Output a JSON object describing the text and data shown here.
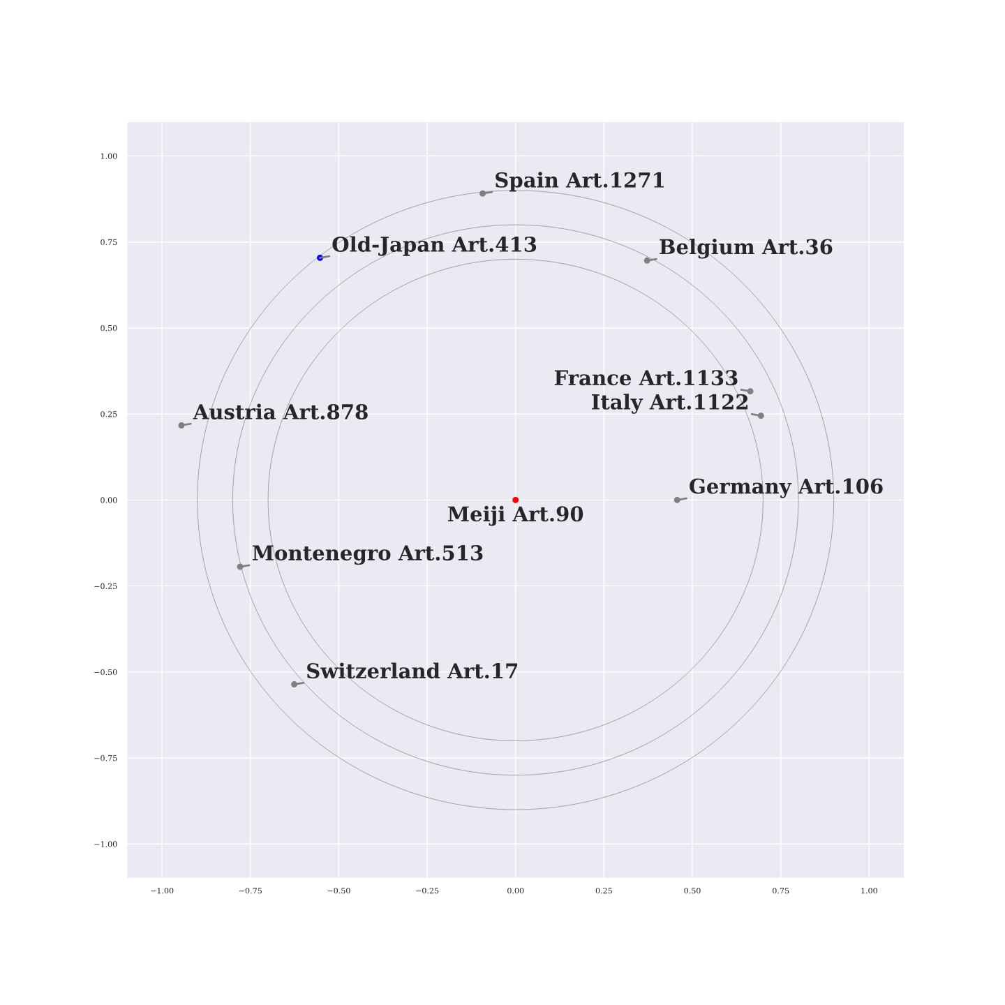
{
  "chart_data": {
    "type": "scatter",
    "xlim": [
      -1.1,
      1.1
    ],
    "ylim": [
      -1.1,
      1.1
    ],
    "xticks": [
      {
        "value": -1,
        "label": "−1.00"
      },
      {
        "value": -0.75,
        "label": "−0.75"
      },
      {
        "value": -0.5,
        "label": "−0.50"
      },
      {
        "value": -0.25,
        "label": "−0.25"
      },
      {
        "value": 0,
        "label": "0.00"
      },
      {
        "value": 0.25,
        "label": "0.25"
      },
      {
        "value": 0.5,
        "label": "0.50"
      },
      {
        "value": 0.75,
        "label": "0.75"
      },
      {
        "value": 1,
        "label": "1.00"
      }
    ],
    "yticks": [
      {
        "value": -1,
        "label": "−1.00"
      },
      {
        "value": -0.75,
        "label": "−0.75"
      },
      {
        "value": -0.5,
        "label": "−0.50"
      },
      {
        "value": -0.25,
        "label": "−0.25"
      },
      {
        "value": 0,
        "label": "0.00"
      },
      {
        "value": 0.25,
        "label": "0.25"
      },
      {
        "value": 0.5,
        "label": "0.50"
      },
      {
        "value": 0.75,
        "label": "0.75"
      },
      {
        "value": 1,
        "label": "1.00"
      }
    ],
    "grid": true,
    "legend": false,
    "marker": "circle",
    "series": [
      {
        "color": "#808080",
        "x": [
          -0.093,
          0.372,
          0.664,
          0.694,
          0.457,
          -0.945,
          -0.779,
          -0.626
        ],
        "values": [
          0.891,
          0.696,
          0.316,
          0.245,
          0,
          0.217,
          -0.194,
          -0.536
        ]
      },
      {
        "color": "#0000ff",
        "x": [
          -0.553
        ],
        "values": [
          0.704
        ]
      },
      {
        "color": "#ff0000",
        "x": [
          0
        ],
        "values": [
          0
        ]
      }
    ],
    "annotations": [
      {
        "text": "Meiji Art.90",
        "x": 0,
        "y": 0
      },
      {
        "text": "Old-Japan Art.413",
        "x": -0.553,
        "y": 0.704
      },
      {
        "text": "Spain Art.1271",
        "x": -0.093,
        "y": 0.891
      },
      {
        "text": "Belgium Art.36",
        "x": 0.372,
        "y": 0.696
      },
      {
        "text": "France Art.1133",
        "x": 0.664,
        "y": 0.316
      },
      {
        "text": "Italy Art.1122",
        "x": 0.694,
        "y": 0.245
      },
      {
        "text": "Germany Art.106",
        "x": 0.457,
        "y": 0
      },
      {
        "text": "Austria Art.878",
        "x": -0.945,
        "y": 0.217
      },
      {
        "text": "Montenegro Art.513",
        "x": -0.779,
        "y": -0.194
      },
      {
        "text": "Switzerland Art.17",
        "x": -0.626,
        "y": -0.536
      }
    ]
  }
}
